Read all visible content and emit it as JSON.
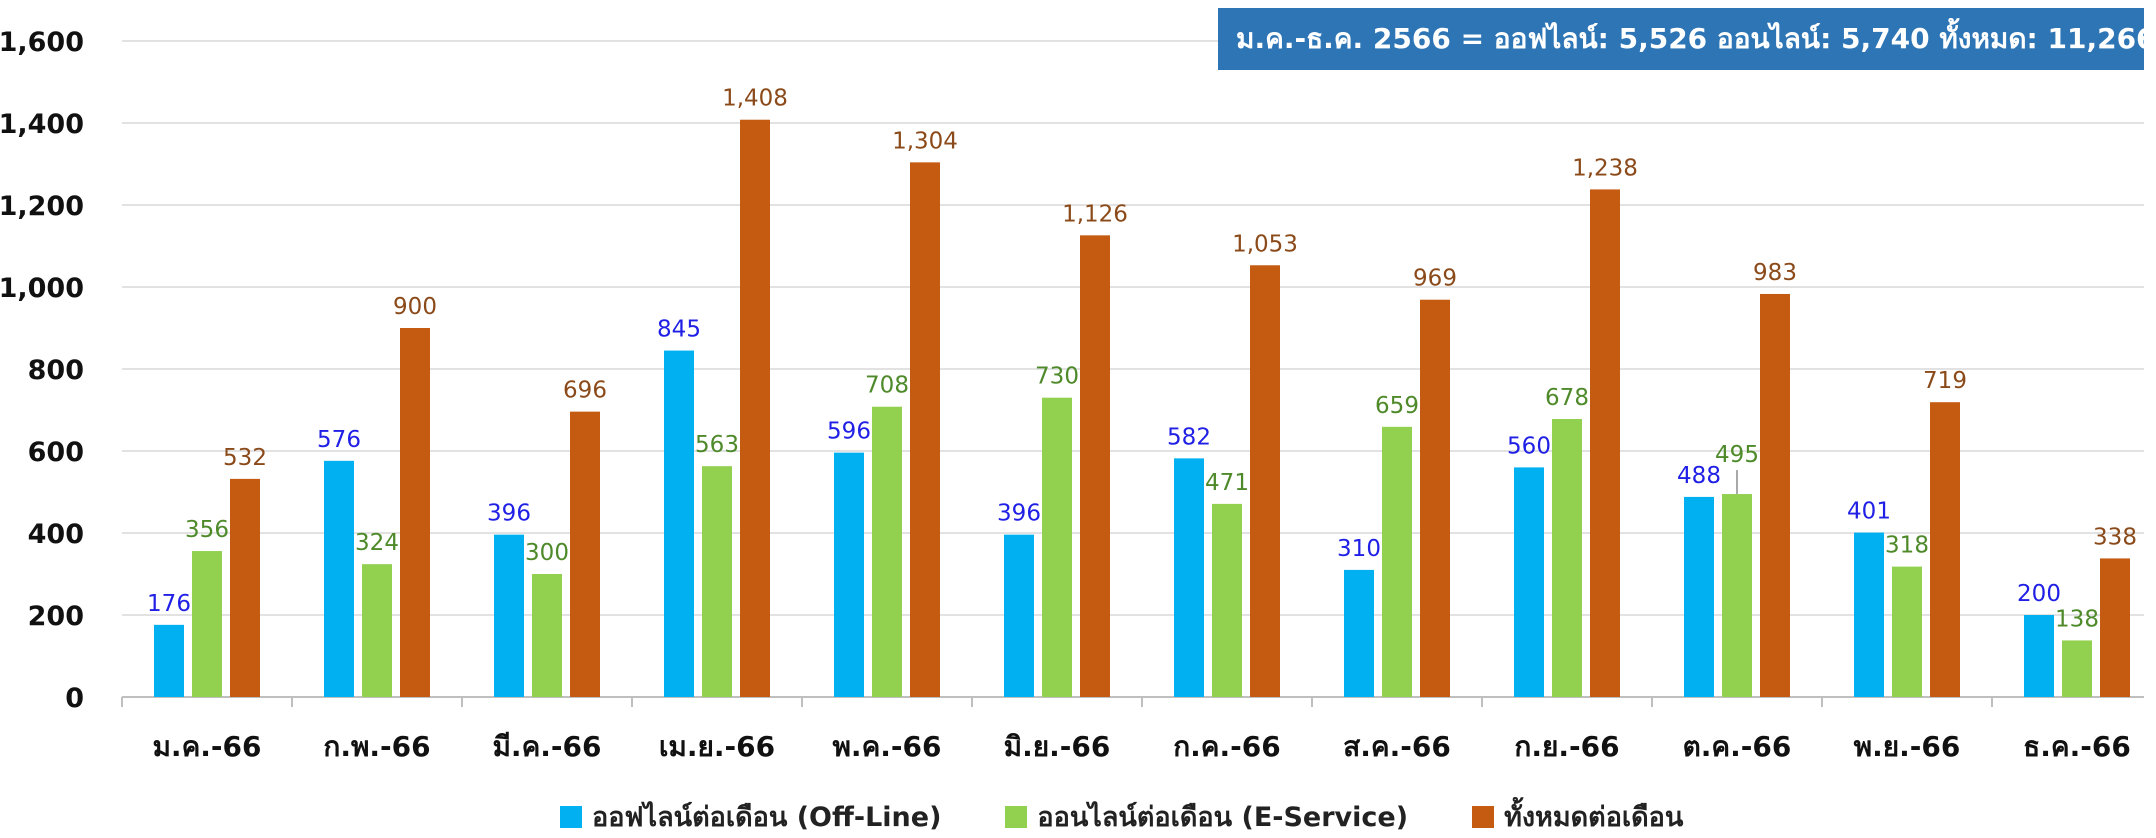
{
  "chart_data": {
    "type": "bar",
    "categories": [
      "ม.ค.-66",
      "ก.พ.-66",
      "มี.ค.-66",
      "เม.ย.-66",
      "พ.ค.-66",
      "มิ.ย.-66",
      "ก.ค.-66",
      "ส.ค.-66",
      "ก.ย.-66",
      "ต.ค.-66",
      "พ.ย.-66",
      "ธ.ค.-66"
    ],
    "series": [
      {
        "name": "ออฟไลน์ต่อเดือน (Off-Line)",
        "color": "#00b0f0",
        "label_color": "#1f1fe6",
        "values": [
          176,
          576,
          396,
          845,
          596,
          396,
          582,
          310,
          560,
          488,
          401,
          200
        ]
      },
      {
        "name": "ออนไลน์ต่อเดือน (E-Service)",
        "color": "#92d050",
        "label_color": "#4e8a2a",
        "values": [
          356,
          324,
          300,
          563,
          708,
          730,
          471,
          659,
          678,
          495,
          318,
          138
        ]
      },
      {
        "name": "ทั้งหมดต่อเดือน",
        "color": "#c55a11",
        "label_color": "#8b4a1a",
        "values": [
          532,
          900,
          696,
          1408,
          1304,
          1126,
          1053,
          969,
          1238,
          983,
          719,
          338
        ]
      }
    ],
    "ylim": [
      0,
      1600
    ],
    "yticks": [
      0,
      200,
      400,
      600,
      800,
      1000,
      1200,
      1400,
      1600
    ],
    "ytick_labels": [
      "0",
      "200",
      "400",
      "600",
      "800",
      "1,000",
      "1,200",
      "1,400",
      "1,600"
    ],
    "grid": true,
    "legend_position": "bottom",
    "annotation": "ม.ค.-ธ.ค. 2566 = ออฟไลน์: 5,526 ออนไลน์: 5,740 ทั้งหมด: 11,266"
  }
}
